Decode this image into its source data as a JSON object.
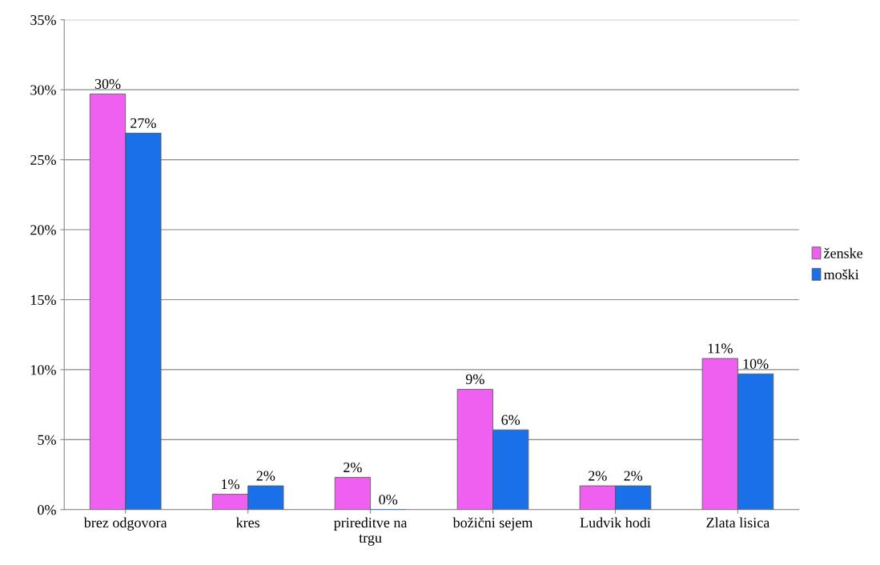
{
  "chart_data": {
    "type": "bar",
    "categories": [
      "brez odgovora",
      "kres",
      "prireditve na\ntrgu",
      "božični sejem",
      "Ludvik hodi",
      "Zlata lisica"
    ],
    "series": [
      {
        "name": "ženske",
        "color": "#f060f0",
        "values": [
          29.7,
          1.1,
          2.3,
          8.6,
          1.7,
          10.8
        ],
        "value_labels": [
          "30%",
          "1%",
          "2%",
          "9%",
          "2%",
          "11%"
        ]
      },
      {
        "name": "moški",
        "color": "#1a70e8",
        "values": [
          26.9,
          1.7,
          0,
          5.7,
          1.7,
          9.7
        ],
        "value_labels": [
          "27%",
          "2%",
          "0%",
          "6%",
          "2%",
          "10%"
        ]
      }
    ],
    "ylim": [
      0,
      35
    ],
    "yticks": [
      {
        "value": 0,
        "label": "0%"
      },
      {
        "value": 5,
        "label": "5%"
      },
      {
        "value": 10,
        "label": "10%"
      },
      {
        "value": 15,
        "label": "15%"
      },
      {
        "value": 20,
        "label": "20%"
      },
      {
        "value": 25,
        "label": "25%"
      },
      {
        "value": 30,
        "label": "30%"
      },
      {
        "value": 35,
        "label": "35%"
      }
    ],
    "grid": "y",
    "legend": "right"
  }
}
